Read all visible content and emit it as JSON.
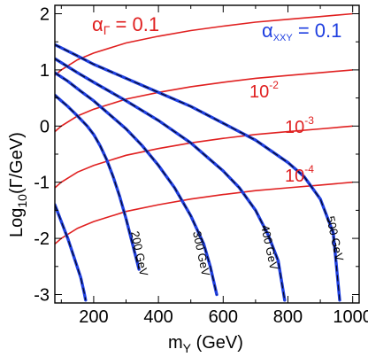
{
  "chart_data": {
    "type": "line",
    "xlabel": "m_Y (GeV)",
    "xlabel_main": "m",
    "xlabel_sub": "Y",
    "xlabel_unit": "(GeV)",
    "ylabel": "Log10(Γ/GeV)",
    "ylabel_main": "Log",
    "ylabel_sub": "10",
    "ylabel_unit": "(Γ/GeV)",
    "xlim": [
      80,
      1020
    ],
    "ylim": [
      -3.15,
      2.15
    ],
    "x_ticks": [
      200,
      400,
      600,
      800,
      1000
    ],
    "x_tick_labels": [
      "200",
      "400",
      "600",
      "800",
      "1000"
    ],
    "y_ticks": [
      -3,
      -2,
      -1,
      0,
      1,
      2
    ],
    "y_tick_labels": [
      "-3",
      "-2",
      "-1",
      "0",
      "1",
      "2"
    ],
    "grid": false,
    "colors": {
      "red": "#e02020",
      "blue": "#1f3fe0",
      "dashed": "#000000"
    },
    "red_series": [
      {
        "label": "αΓ = 0.1",
        "alpha": 0.1,
        "x": [
          80,
          100,
          150,
          200,
          300,
          400,
          500,
          600,
          700,
          800,
          900,
          1000
        ],
        "y": [
          0.9,
          1.0,
          1.18,
          1.3,
          1.48,
          1.6,
          1.7,
          1.78,
          1.85,
          1.9,
          1.95,
          2.0
        ]
      },
      {
        "label": "10⁻²",
        "alpha": 0.01,
        "x": [
          80,
          100,
          150,
          200,
          300,
          400,
          500,
          600,
          700,
          800,
          900,
          1000
        ],
        "y": [
          -0.1,
          0.0,
          0.18,
          0.3,
          0.48,
          0.6,
          0.7,
          0.78,
          0.85,
          0.9,
          0.95,
          1.0
        ]
      },
      {
        "label": "10⁻³",
        "alpha": 0.001,
        "x": [
          80,
          100,
          150,
          200,
          300,
          400,
          500,
          600,
          700,
          800,
          900,
          1000
        ],
        "y": [
          -1.1,
          -1.0,
          -0.82,
          -0.7,
          -0.52,
          -0.4,
          -0.3,
          -0.22,
          -0.15,
          -0.1,
          -0.05,
          0.0
        ]
      },
      {
        "label": "10⁻⁴",
        "alpha": 0.0001,
        "x": [
          80,
          100,
          150,
          200,
          300,
          400,
          500,
          600,
          700,
          800,
          900,
          1000
        ],
        "y": [
          -2.1,
          -2.0,
          -1.82,
          -1.7,
          -1.52,
          -1.4,
          -1.3,
          -1.22,
          -1.15,
          -1.1,
          -1.05,
          -1.0
        ]
      }
    ],
    "blue_series": [
      {
        "label": "200 GeV",
        "mass": 200,
        "x": [
          80,
          100,
          120,
          150,
          180,
          200,
          220,
          240,
          260,
          280,
          300,
          320,
          340
        ],
        "y": [
          0.55,
          0.45,
          0.35,
          0.18,
          0.0,
          -0.15,
          -0.35,
          -0.6,
          -0.9,
          -1.25,
          -1.65,
          -2.1,
          -2.55
        ]
      },
      {
        "label": "300 GeV",
        "mass": 300,
        "x": [
          80,
          120,
          160,
          200,
          250,
          300,
          350,
          400,
          450,
          500,
          540,
          560,
          580
        ],
        "y": [
          0.95,
          0.8,
          0.62,
          0.45,
          0.2,
          -0.05,
          -0.35,
          -0.7,
          -1.1,
          -1.6,
          -2.1,
          -2.5,
          -3.0
        ]
      },
      {
        "label": "400 GeV",
        "mass": 400,
        "x": [
          80,
          150,
          200,
          300,
          400,
          500,
          550,
          600,
          650,
          700,
          740,
          770,
          790
        ],
        "y": [
          1.2,
          0.95,
          0.78,
          0.45,
          0.1,
          -0.3,
          -0.55,
          -0.8,
          -1.1,
          -1.5,
          -1.95,
          -2.4,
          -3.1
        ]
      },
      {
        "label": "500 GeV",
        "mass": 500,
        "x": [
          80,
          150,
          200,
          300,
          400,
          500,
          600,
          700,
          750,
          800,
          850,
          900,
          940,
          960
        ],
        "y": [
          1.45,
          1.25,
          1.1,
          0.85,
          0.6,
          0.35,
          0.05,
          -0.25,
          -0.45,
          -0.65,
          -0.9,
          -1.3,
          -1.9,
          -3.1
        ]
      },
      {
        "label": "",
        "mass": 0,
        "x": [
          80,
          100,
          120,
          140,
          160,
          170,
          175
        ],
        "y": [
          -1.4,
          -1.7,
          -2.0,
          -2.35,
          -2.7,
          -2.95,
          -3.1
        ]
      }
    ],
    "annotations": [
      {
        "text": "αΓ = 0.1",
        "color": "red"
      },
      {
        "text": "α_XXY = 0.1",
        "color": "blue"
      },
      {
        "text": "10⁻²",
        "color": "red"
      },
      {
        "text": "10⁻³",
        "color": "red"
      },
      {
        "text": "10⁻⁴",
        "color": "red"
      }
    ]
  }
}
